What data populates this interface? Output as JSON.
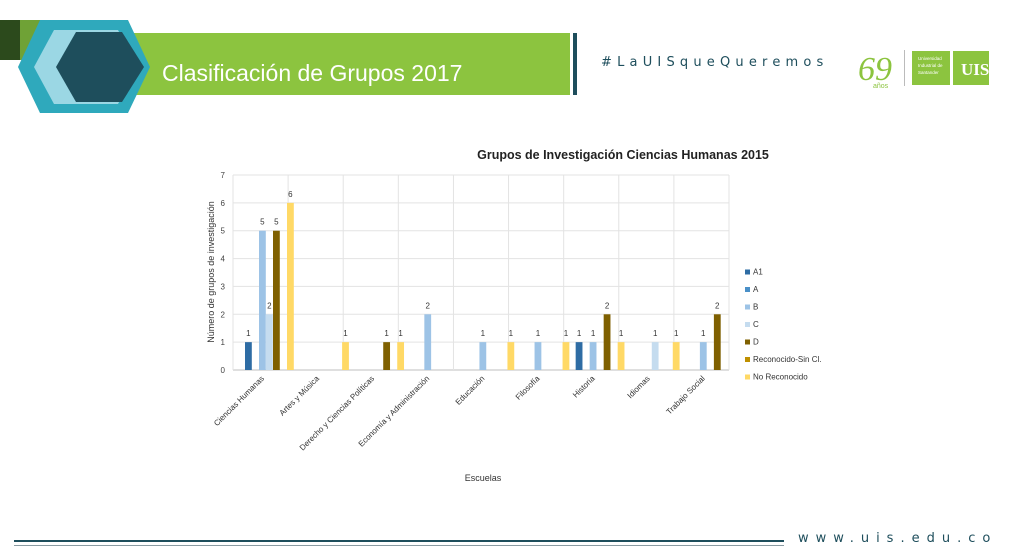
{
  "slide": {
    "title": "Clasificación de Grupos 2017",
    "hashtag": "#LaUISqueQueremos",
    "website": "www.uis.edu.co",
    "logo_anniversary": "69 años",
    "logo_university": "Universidad Industrial de Santander",
    "colors": {
      "teal": "#1e4e5c",
      "green": "#8cc43f",
      "light_blue": "#9bd7e4"
    }
  },
  "chart_data": {
    "type": "bar",
    "title": "Grupos de Investigación Ciencias Humanas 2015",
    "xlabel": "Escuelas",
    "ylabel": "Número de grupos de investigación",
    "ylim": [
      0,
      7
    ],
    "yticks": [
      0,
      1,
      2,
      3,
      4,
      5,
      6,
      7
    ],
    "grid": true,
    "legend_position": "right",
    "categories": [
      "Ciencias Humanas",
      "Artes y Música",
      "Derecho y Ciencias Políticas",
      "Economía y Administración",
      "Educación",
      "Filosofía",
      "Historia",
      "Idiomas",
      "Trabajo Social"
    ],
    "series": [
      {
        "name": "A1",
        "color": "#2e6ca4",
        "values": [
          1,
          null,
          null,
          null,
          null,
          null,
          1,
          null,
          null
        ]
      },
      {
        "name": "A",
        "color": "#4a90c8",
        "values": [
          null,
          null,
          null,
          null,
          null,
          null,
          null,
          null,
          null
        ]
      },
      {
        "name": "B",
        "color": "#9dc3e6",
        "values": [
          5,
          null,
          null,
          2,
          1,
          1,
          1,
          null,
          1
        ]
      },
      {
        "name": "C",
        "color": "#c5dcef",
        "values": [
          2,
          null,
          null,
          null,
          null,
          null,
          null,
          1,
          null
        ]
      },
      {
        "name": "D",
        "color": "#7f6000",
        "values": [
          5,
          null,
          1,
          null,
          null,
          null,
          2,
          null,
          2
        ]
      },
      {
        "name": "Reconocido-Sin Cl.",
        "color": "#bf9000",
        "values": [
          null,
          null,
          null,
          null,
          null,
          null,
          null,
          null,
          null
        ]
      },
      {
        "name": "No Reconocido",
        "color": "#ffd966",
        "values": [
          6,
          1,
          1,
          null,
          1,
          1,
          1,
          1,
          null
        ]
      }
    ]
  }
}
